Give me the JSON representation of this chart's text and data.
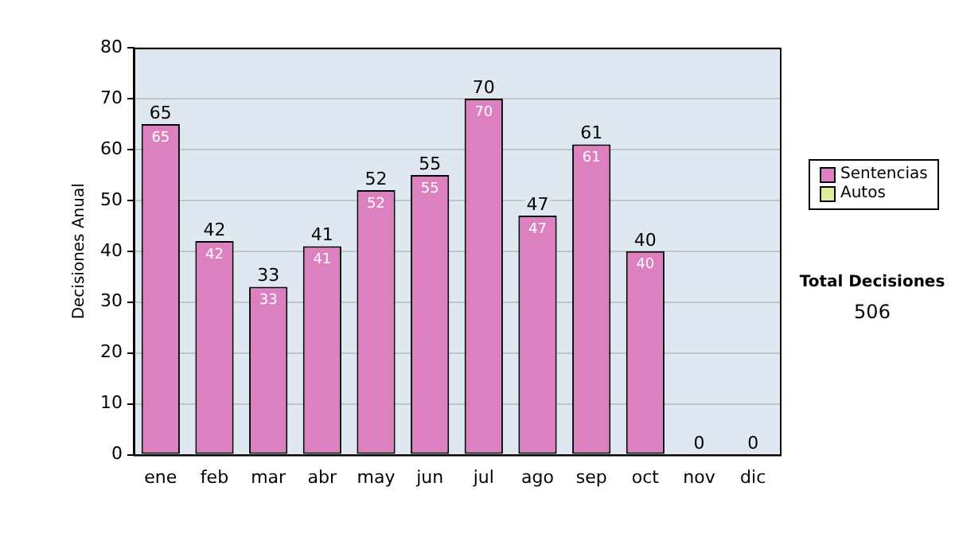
{
  "chart_data": {
    "type": "bar",
    "stacked": true,
    "ylabel": "Decisiones Anual",
    "categories": [
      "ene",
      "feb",
      "mar",
      "abr",
      "may",
      "jun",
      "jul",
      "ago",
      "sep",
      "oct",
      "nov",
      "dic"
    ],
    "series": [
      {
        "name": "Sentencias",
        "color": "#dd80c0",
        "values": [
          65,
          42,
          33,
          41,
          52,
          55,
          70,
          47,
          61,
          40,
          0,
          0
        ],
        "value_labels": [
          "65",
          "42",
          "33",
          "41",
          "52",
          "55",
          "70",
          "47",
          "61",
          "40",
          null,
          null
        ]
      },
      {
        "name": "Autos",
        "color": "#ddee99",
        "values": [
          0,
          0,
          0,
          0,
          0,
          0,
          0,
          0,
          0,
          0,
          0,
          0
        ]
      }
    ],
    "totals": [
      "65",
      "42",
      "33",
      "41",
      "52",
      "55",
      "70",
      "47",
      "61",
      "40",
      "0",
      "0"
    ],
    "ylim": [
      0,
      80
    ],
    "yticks": [
      0,
      10,
      20,
      30,
      40,
      50,
      60,
      70,
      80
    ],
    "grid": "y",
    "legend": "right",
    "annotations": [
      "Total Decisiones",
      "506"
    ]
  }
}
